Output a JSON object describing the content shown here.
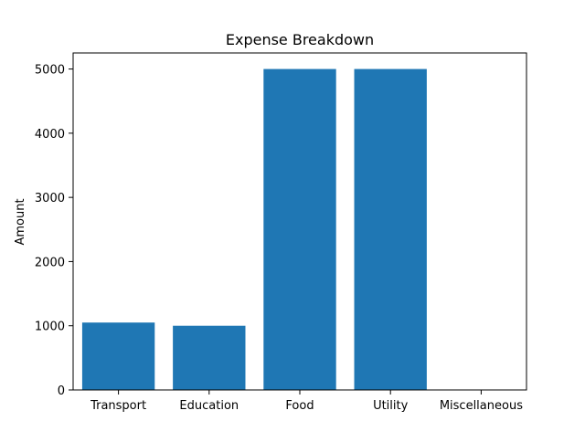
{
  "chart_data": {
    "type": "bar",
    "title": "Expense Breakdown",
    "xlabel": "",
    "ylabel": "Amount",
    "categories": [
      "Transport",
      "Education",
      "Food",
      "Utility",
      "Miscellaneous"
    ],
    "values": [
      1050,
      1000,
      5000,
      5000,
      0
    ],
    "ylim": [
      0,
      5250
    ],
    "yticks": [
      0,
      1000,
      2000,
      3000,
      4000,
      5000
    ],
    "grid": false,
    "bar_color": "#1f77b4"
  }
}
